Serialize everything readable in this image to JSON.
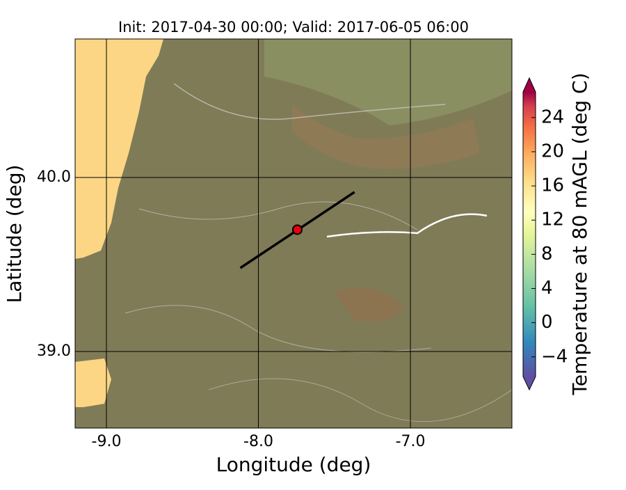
{
  "title": "Init: 2017-04-30 00:00; Valid: 2017-06-05 06:00",
  "x_axis": {
    "label": "Longitude (deg)",
    "lim": [
      -9.206,
      -6.332
    ],
    "ticks": [
      {
        "value": -9.0,
        "label": "-9.0"
      },
      {
        "value": -8.0,
        "label": "-8.0"
      },
      {
        "value": -7.0,
        "label": "-7.0"
      }
    ]
  },
  "y_axis": {
    "label": "Latitude (deg)",
    "lim": [
      38.56,
      40.796
    ],
    "ticks": [
      {
        "value": 39.0,
        "label": "39.0"
      },
      {
        "value": 40.0,
        "label": "40.0"
      }
    ]
  },
  "colorbar": {
    "label": "Temperature at 80 mAGL (deg C)",
    "lim": [
      -6.3,
      27
    ],
    "ticks": [
      {
        "value": -4,
        "label": "−4"
      },
      0,
      4,
      8,
      12,
      16,
      20,
      24
    ]
  },
  "transect": {
    "lon": [
      -8.119,
      -7.368
    ],
    "lat": [
      39.48,
      39.916
    ]
  },
  "marker": {
    "lon": -7.744,
    "lat": 39.7
  }
}
